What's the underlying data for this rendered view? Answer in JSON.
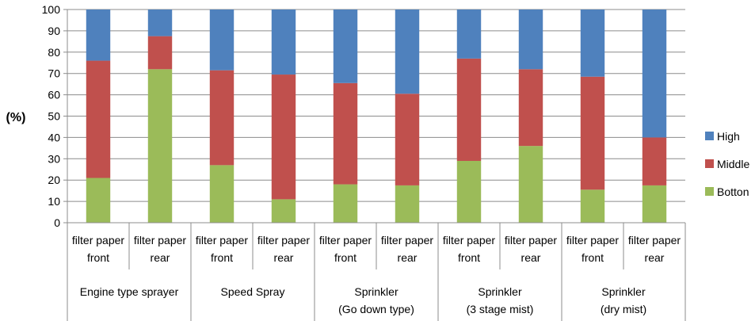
{
  "chart_data": {
    "type": "bar",
    "stacked": true,
    "ylabel": "(%)",
    "ylim": [
      0,
      100
    ],
    "yticks": [
      0,
      10,
      20,
      30,
      40,
      50,
      60,
      70,
      80,
      90,
      100
    ],
    "grid": true,
    "legend_position": "right",
    "groups": [
      {
        "label_lines": [
          "Engine type sprayer"
        ],
        "categories": [
          [
            "filter paper",
            "front"
          ],
          [
            "filter paper",
            "rear"
          ]
        ]
      },
      {
        "label_lines": [
          "Speed Spray"
        ],
        "categories": [
          [
            "filter paper",
            "front"
          ],
          [
            "filter paper",
            "rear"
          ]
        ]
      },
      {
        "label_lines": [
          "Sprinkler",
          "(Go down type)"
        ],
        "categories": [
          [
            "filter paper",
            "front"
          ],
          [
            "filter paper",
            "rear"
          ]
        ]
      },
      {
        "label_lines": [
          "Sprinkler",
          "(3 stage mist)"
        ],
        "categories": [
          [
            "filter paper",
            "front"
          ],
          [
            "filter paper",
            "rear"
          ]
        ]
      },
      {
        "label_lines": [
          "Sprinkler",
          "(dry mist)"
        ],
        "categories": [
          [
            "filter paper",
            "front"
          ],
          [
            "filter paper",
            "rear"
          ]
        ]
      }
    ],
    "series": [
      {
        "name": "Botton",
        "color": "#9bbb59",
        "values": [
          21,
          72,
          27,
          11,
          18,
          17.5,
          29,
          36,
          15.5,
          17.5
        ]
      },
      {
        "name": "Middle",
        "color": "#c0504d",
        "values": [
          55,
          15.5,
          44.5,
          58.5,
          47.5,
          43,
          48,
          36,
          53,
          22.5
        ]
      },
      {
        "name": "High",
        "color": "#4f81bd",
        "values": [
          24,
          12.5,
          28.5,
          30.5,
          34.5,
          39.5,
          23,
          28,
          31.5,
          60
        ]
      }
    ],
    "legend_order": [
      "High",
      "Middle",
      "Botton"
    ]
  }
}
